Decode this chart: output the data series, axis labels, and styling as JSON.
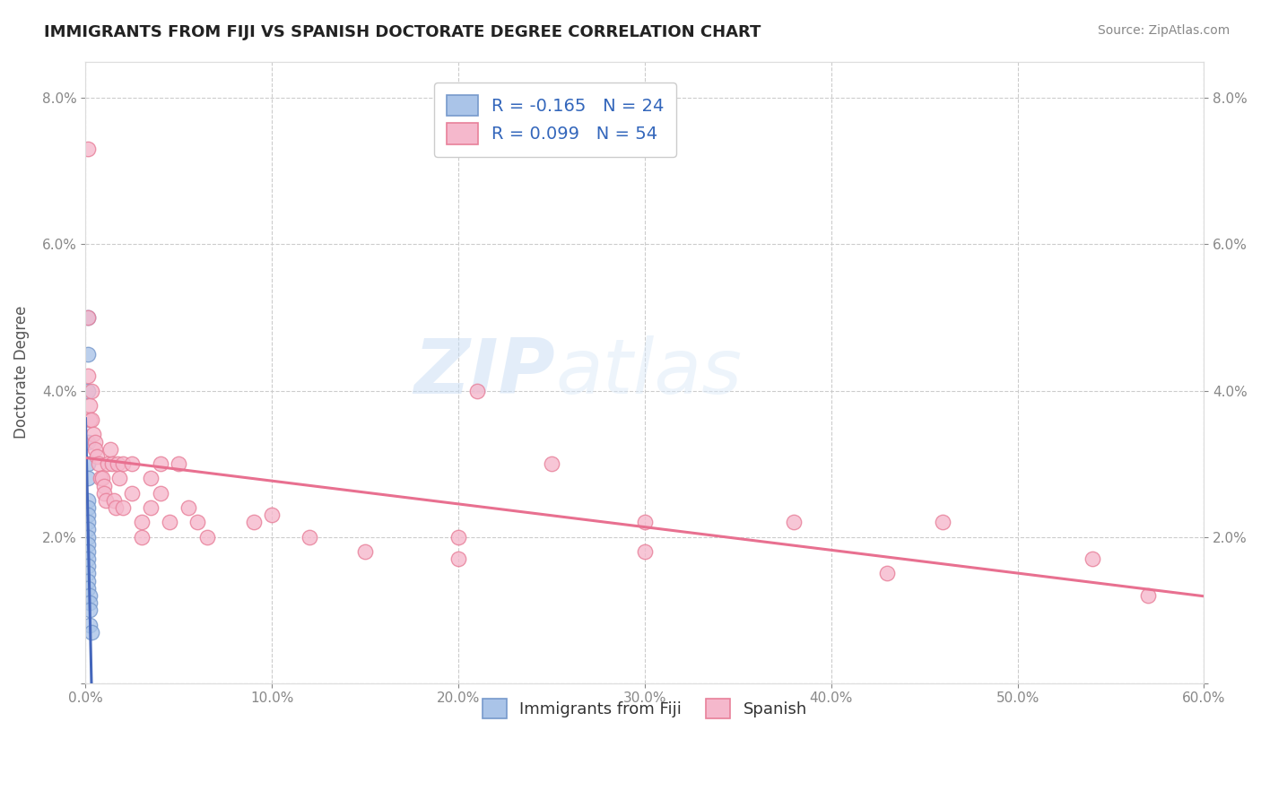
{
  "title": "IMMIGRANTS FROM FIJI VS SPANISH DOCTORATE DEGREE CORRELATION CHART",
  "source": "Source: ZipAtlas.com",
  "ylabel": "Doctorate Degree",
  "xlabel": "",
  "watermark_zip": "ZIP",
  "watermark_atlas": "atlas",
  "xlim": [
    0.0,
    0.6
  ],
  "ylim": [
    0.0,
    0.085
  ],
  "xticks": [
    0.0,
    0.1,
    0.2,
    0.3,
    0.4,
    0.5,
    0.6
  ],
  "yticks": [
    0.0,
    0.02,
    0.04,
    0.06,
    0.08
  ],
  "xticklabels": [
    "0.0%",
    "10.0%",
    "20.0%",
    "30.0%",
    "40.0%",
    "50.0%",
    "60.0%"
  ],
  "yticklabels": [
    "",
    "2.0%",
    "4.0%",
    "6.0%",
    "8.0%"
  ],
  "fiji_R": -0.165,
  "fiji_N": 24,
  "spanish_R": 0.099,
  "spanish_N": 54,
  "legend_labels": [
    "Immigrants from Fiji",
    "Spanish"
  ],
  "fiji_color": "#aac4e8",
  "spanish_color": "#f5b8cc",
  "fiji_edge_color": "#7799cc",
  "spanish_edge_color": "#e8809a",
  "fiji_line_color": "#4466bb",
  "spanish_line_color": "#e87090",
  "fiji_line_dash_color": "#99bbdd",
  "fiji_points": [
    [
      0.001,
      0.045
    ],
    [
      0.001,
      0.04
    ],
    [
      0.001,
      0.033
    ],
    [
      0.001,
      0.03
    ],
    [
      0.001,
      0.028
    ],
    [
      0.001,
      0.025
    ],
    [
      0.001,
      0.024
    ],
    [
      0.001,
      0.023
    ],
    [
      0.001,
      0.022
    ],
    [
      0.001,
      0.021
    ],
    [
      0.001,
      0.02
    ],
    [
      0.001,
      0.019
    ],
    [
      0.001,
      0.018
    ],
    [
      0.001,
      0.017
    ],
    [
      0.001,
      0.016
    ],
    [
      0.001,
      0.015
    ],
    [
      0.001,
      0.014
    ],
    [
      0.001,
      0.013
    ],
    [
      0.002,
      0.012
    ],
    [
      0.002,
      0.011
    ],
    [
      0.002,
      0.01
    ],
    [
      0.002,
      0.008
    ],
    [
      0.003,
      0.007
    ],
    [
      0.001,
      0.05
    ]
  ],
  "spanish_points": [
    [
      0.001,
      0.073
    ],
    [
      0.001,
      0.05
    ],
    [
      0.001,
      0.042
    ],
    [
      0.002,
      0.038
    ],
    [
      0.002,
      0.036
    ],
    [
      0.003,
      0.04
    ],
    [
      0.003,
      0.036
    ],
    [
      0.004,
      0.034
    ],
    [
      0.005,
      0.033
    ],
    [
      0.005,
      0.032
    ],
    [
      0.006,
      0.031
    ],
    [
      0.007,
      0.03
    ],
    [
      0.008,
      0.028
    ],
    [
      0.009,
      0.028
    ],
    [
      0.01,
      0.027
    ],
    [
      0.01,
      0.026
    ],
    [
      0.011,
      0.025
    ],
    [
      0.012,
      0.03
    ],
    [
      0.013,
      0.032
    ],
    [
      0.014,
      0.03
    ],
    [
      0.015,
      0.025
    ],
    [
      0.016,
      0.024
    ],
    [
      0.017,
      0.03
    ],
    [
      0.018,
      0.028
    ],
    [
      0.02,
      0.024
    ],
    [
      0.02,
      0.03
    ],
    [
      0.025,
      0.03
    ],
    [
      0.025,
      0.026
    ],
    [
      0.03,
      0.022
    ],
    [
      0.03,
      0.02
    ],
    [
      0.035,
      0.028
    ],
    [
      0.035,
      0.024
    ],
    [
      0.04,
      0.03
    ],
    [
      0.04,
      0.026
    ],
    [
      0.045,
      0.022
    ],
    [
      0.05,
      0.03
    ],
    [
      0.055,
      0.024
    ],
    [
      0.06,
      0.022
    ],
    [
      0.065,
      0.02
    ],
    [
      0.09,
      0.022
    ],
    [
      0.1,
      0.023
    ],
    [
      0.12,
      0.02
    ],
    [
      0.15,
      0.018
    ],
    [
      0.2,
      0.02
    ],
    [
      0.2,
      0.017
    ],
    [
      0.21,
      0.04
    ],
    [
      0.25,
      0.03
    ],
    [
      0.3,
      0.022
    ],
    [
      0.3,
      0.018
    ],
    [
      0.38,
      0.022
    ],
    [
      0.43,
      0.015
    ],
    [
      0.46,
      0.022
    ],
    [
      0.54,
      0.017
    ],
    [
      0.57,
      0.012
    ]
  ],
  "background_color": "#ffffff",
  "grid_color": "#cccccc",
  "title_color": "#222222",
  "axis_label_color": "#555555",
  "tick_color": "#888888"
}
